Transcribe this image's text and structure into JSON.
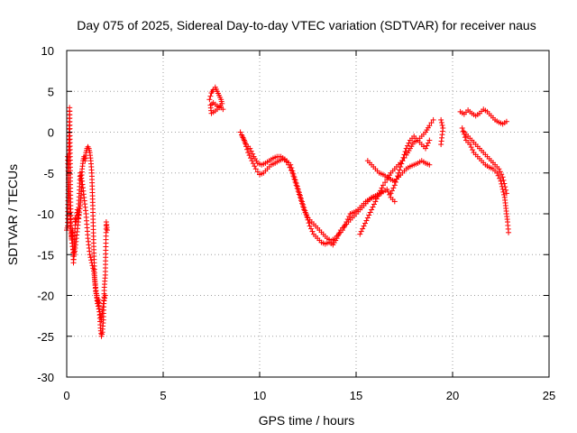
{
  "chart_data": {
    "type": "scatter",
    "title": "Day 075 of 2025, Sidereal Day-to-day VTEC variation (SDTVAR) for receiver naus",
    "xlabel": "GPS time / hours",
    "ylabel": "SDTVAR / TECUs",
    "xlim": [
      0,
      25
    ],
    "ylim": [
      -30,
      10
    ],
    "xticks": [
      "0",
      "5",
      "10",
      "15",
      "20",
      "25"
    ],
    "yticks": [
      "10",
      "5",
      "0",
      "-5",
      "-10",
      "-15",
      "-20",
      "-25",
      "-30"
    ],
    "grid": true,
    "marker": "plus",
    "color": "#ff0000",
    "series": [
      {
        "name": "SDTVAR",
        "segments": [
          {
            "x": [
              0.0,
              0.05,
              0.1,
              0.15,
              0.2,
              0.25,
              0.3,
              0.35,
              0.4,
              0.45,
              0.5,
              0.55,
              0.6,
              0.65,
              0.7,
              0.75,
              0.8,
              0.85,
              0.9,
              0.95,
              1.0,
              1.05,
              1.1,
              1.15,
              1.2,
              1.25,
              1.3,
              1.35,
              1.4,
              1.45,
              1.5,
              1.55,
              1.6,
              1.65,
              1.7,
              1.75,
              1.8,
              1.85,
              1.9,
              1.95,
              2.0,
              2.05,
              2.1
            ],
            "y": [
              -12,
              -11.5,
              -4,
              3,
              -9,
              -13,
              -12,
              -16,
              -14,
              -10.5,
              -11,
              -9.5,
              -10.5,
              -7.5,
              -5,
              -6,
              -4.5,
              -3.5,
              -3,
              -3.5,
              -2.5,
              -2,
              -1.8,
              -2,
              -2.5,
              -3.5,
              -5,
              -9,
              -14,
              -18,
              -19.5,
              -20,
              -21,
              -20.5,
              -22,
              -24,
              -25,
              -24.5,
              -23,
              -19,
              -17.5,
              -11,
              -12
            ]
          },
          {
            "x": [
              0.05,
              0.1,
              0.15,
              0.2,
              0.3,
              0.4,
              0.5,
              0.6,
              0.7,
              0.8,
              0.9,
              1.0,
              1.1,
              1.2,
              1.3,
              1.4,
              1.5,
              1.6,
              1.7,
              1.8,
              1.9,
              2.0
            ],
            "y": [
              -3,
              -6,
              -9,
              -12,
              -14,
              -15,
              -13,
              -11,
              -9,
              -6,
              -8,
              -10,
              -13,
              -15,
              -16,
              -17,
              -19,
              -21,
              -22,
              -23,
              -21,
              -20
            ]
          },
          {
            "x": [
              7.4,
              7.5,
              7.6,
              7.7,
              7.8,
              7.9,
              8.0,
              8.05,
              7.9,
              7.7,
              7.5,
              7.45,
              7.6,
              7.8,
              8.0,
              8.1
            ],
            "y": [
              4.0,
              4.8,
              5.2,
              5.5,
              5.0,
              4.5,
              4.0,
              3.5,
              3.0,
              2.6,
              2.3,
              3.3,
              3.6,
              3.2,
              3.0,
              2.8
            ]
          },
          {
            "x": [
              9.0,
              9.2,
              9.4,
              9.6,
              9.8,
              10.0,
              10.2,
              10.4,
              10.6,
              10.8,
              11.0,
              11.2,
              11.4,
              11.6,
              11.8,
              12.0,
              12.2,
              12.4,
              12.6,
              12.8,
              13.0,
              13.2,
              13.4,
              13.6,
              13.8,
              14.0,
              14.2,
              14.4,
              14.6,
              14.8,
              15.0,
              15.2,
              15.4,
              15.6,
              15.8,
              16.0,
              16.2,
              16.4,
              16.6,
              16.8,
              17.0
            ],
            "y": [
              0.0,
              -1.0,
              -2.5,
              -3.5,
              -4.5,
              -5.2,
              -5.0,
              -4.5,
              -4.0,
              -3.8,
              -3.5,
              -3.3,
              -3.5,
              -4.0,
              -5.5,
              -7.0,
              -8.5,
              -10.0,
              -11.5,
              -12.5,
              -13.0,
              -13.5,
              -13.7,
              -13.5,
              -13.8,
              -13.0,
              -12.0,
              -11.5,
              -11.0,
              -10.5,
              -10.0,
              -9.5,
              -9.0,
              -8.5,
              -8.0,
              -7.8,
              -7.5,
              -7.3,
              -7.0,
              -8.0,
              -8.5
            ]
          },
          {
            "x": [
              9.1,
              9.3,
              9.5,
              9.7,
              9.9,
              10.1,
              10.3,
              10.5,
              10.7,
              10.9,
              11.1,
              11.3,
              11.5,
              11.7,
              11.9,
              12.1,
              12.3,
              12.5,
              12.7,
              12.9,
              13.1,
              13.3,
              13.5,
              13.7,
              13.9,
              14.1,
              14.3,
              14.5,
              14.7,
              14.9,
              15.1,
              15.3,
              15.5,
              15.7,
              15.9,
              16.1,
              16.3
            ],
            "y": [
              -0.5,
              -1.5,
              -2.0,
              -3.0,
              -3.8,
              -4.0,
              -3.8,
              -3.5,
              -3.2,
              -3.0,
              -3.0,
              -3.3,
              -4.0,
              -5.0,
              -6.5,
              -8.0,
              -9.5,
              -10.5,
              -11.0,
              -11.5,
              -12.0,
              -12.5,
              -13.0,
              -13.3,
              -13.0,
              -12.5,
              -12.0,
              -11.0,
              -10.0,
              -9.8,
              -9.5,
              -9.0,
              -8.5,
              -8.2,
              -8.0,
              -7.8,
              -7.5
            ]
          },
          {
            "x": [
              15.2,
              15.4,
              15.6,
              15.8,
              16.0,
              16.2,
              16.4,
              16.6,
              16.8,
              17.0,
              17.2,
              17.4,
              17.6,
              17.8,
              18.0,
              18.2,
              18.4,
              18.6,
              18.8,
              19.0
            ],
            "y": [
              -12.5,
              -11.5,
              -10.5,
              -9.5,
              -8.5,
              -7.5,
              -6.5,
              -5.8,
              -5.0,
              -4.5,
              -4.0,
              -3.5,
              -2.8,
              -2.0,
              -1.2,
              -1.0,
              -0.5,
              0.0,
              0.8,
              1.5
            ]
          },
          {
            "x": [
              15.6,
              15.8,
              16.0,
              16.2,
              16.4,
              16.6,
              16.8,
              17.0,
              17.2,
              17.4,
              17.6,
              17.8,
              18.0,
              18.2,
              18.4,
              18.6,
              18.8
            ],
            "y": [
              -3.5,
              -4.0,
              -4.5,
              -5.0,
              -5.2,
              -5.5,
              -5.8,
              -6.0,
              -5.5,
              -5.0,
              -4.5,
              -4.2,
              -4.0,
              -3.8,
              -3.5,
              -3.8,
              -4.0
            ]
          },
          {
            "x": [
              16.8,
              17.0,
              17.2,
              17.4,
              17.6,
              17.8,
              18.0,
              18.2,
              18.4,
              18.6,
              18.8
            ],
            "y": [
              -7.5,
              -6.5,
              -5.0,
              -3.5,
              -2.0,
              -1.0,
              -0.5,
              -1.0,
              -1.5,
              -2.0,
              -1.0
            ]
          },
          {
            "x": [
              19.4,
              19.5,
              19.4
            ],
            "y": [
              1.5,
              0.5,
              -1.5
            ]
          },
          {
            "x": [
              20.4,
              20.6,
              20.8,
              21.0,
              21.2,
              21.4,
              21.6,
              21.8,
              22.0,
              22.2,
              22.4,
              22.6,
              22.8
            ],
            "y": [
              2.5,
              2.2,
              2.7,
              2.3,
              2.0,
              2.3,
              2.8,
              2.5,
              2.0,
              1.5,
              1.2,
              1.0,
              1.3
            ]
          },
          {
            "x": [
              20.5,
              20.7,
              20.9,
              21.1,
              21.3,
              21.5,
              21.7,
              21.9,
              22.1,
              22.3,
              22.5,
              22.6,
              22.7,
              22.75,
              22.8,
              22.85,
              22.9
            ],
            "y": [
              0.5,
              -1.0,
              -1.5,
              -2.5,
              -3.0,
              -3.5,
              -4.0,
              -4.3,
              -4.5,
              -5.0,
              -6.0,
              -7.0,
              -8.0,
              -9.0,
              -10.0,
              -11.0,
              -12.3
            ]
          },
          {
            "x": [
              20.6,
              20.8,
              21.0,
              21.2,
              21.4,
              21.6,
              21.8,
              22.0,
              22.2,
              22.4,
              22.6,
              22.8
            ],
            "y": [
              0.0,
              -0.5,
              -1.0,
              -1.5,
              -2.0,
              -2.5,
              -3.0,
              -3.5,
              -4.0,
              -4.5,
              -5.5,
              -7.5
            ]
          }
        ]
      }
    ]
  }
}
